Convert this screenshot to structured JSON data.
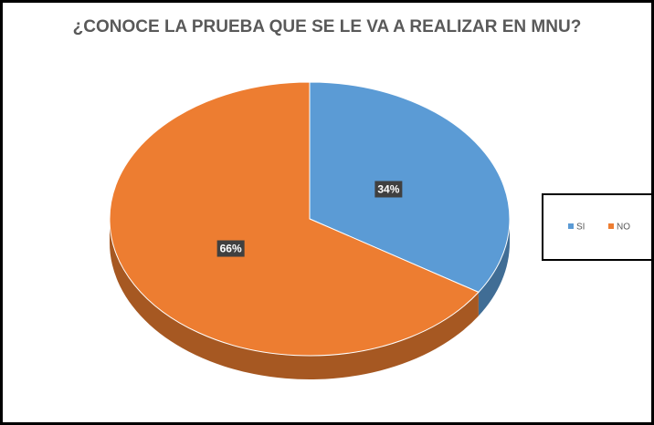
{
  "chart_data": {
    "type": "pie",
    "title": "¿CONOCE LA PRUEBA QUE SE LE VA A REALIZAR EN MNU?",
    "categories": [
      "SI",
      "NO"
    ],
    "values": [
      34,
      66
    ],
    "value_labels": [
      "34%",
      "66%"
    ],
    "colors": [
      "#5b9bd5",
      "#ed7d31"
    ],
    "legend": "right"
  }
}
